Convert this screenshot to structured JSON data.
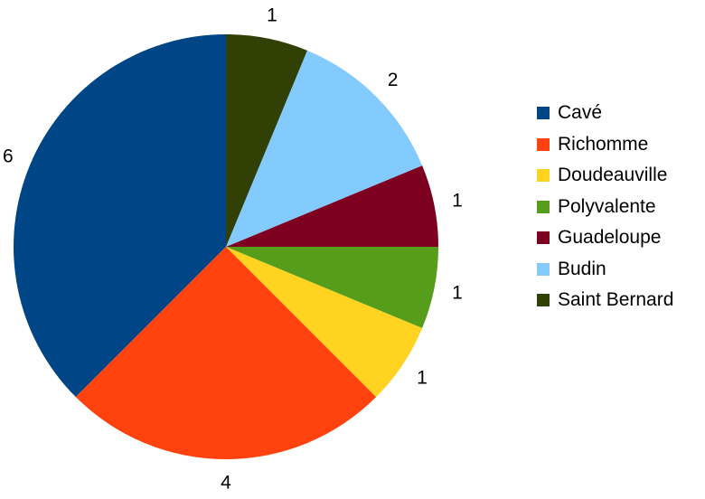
{
  "chart_data": {
    "type": "pie",
    "title": "",
    "slices": [
      {
        "name": "Cavé",
        "value": 6,
        "label": "6",
        "color": "#004586"
      },
      {
        "name": "Richomme",
        "value": 4,
        "label": "4",
        "color": "#ff420e"
      },
      {
        "name": "Doudeauville",
        "value": 1,
        "label": "1",
        "color": "#ffd320"
      },
      {
        "name": "Polyvalente",
        "value": 1,
        "label": "1",
        "color": "#579d1c"
      },
      {
        "name": "Guadeloupe",
        "value": 1,
        "label": "1",
        "color": "#7e0021"
      },
      {
        "name": "Budin",
        "value": 2,
        "label": "2",
        "color": "#83caff"
      },
      {
        "name": "Saint Bernard",
        "value": 1,
        "label": "1",
        "color": "#314004"
      }
    ],
    "start_angle_deg": 0,
    "direction": "counterclockwise-from-top",
    "legend_position": "right"
  }
}
